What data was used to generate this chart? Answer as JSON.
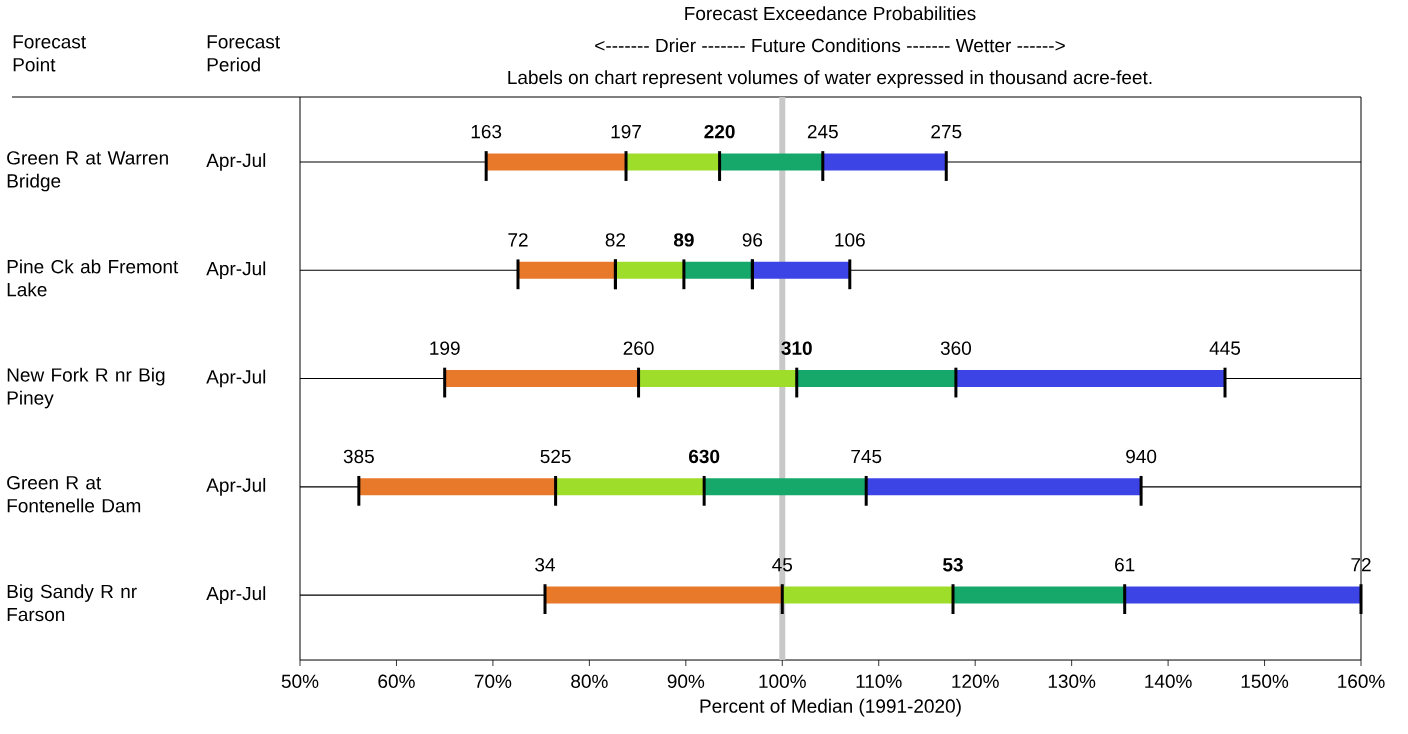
{
  "chart_data": {
    "type": "bar",
    "orientation": "horizontal",
    "title": "Forecast Exceedance Probabilities",
    "xlabel": "Percent of Median (1991-2020)",
    "categories": [
      "Green R at Warren Bridge",
      "Pine Ck ab Fremont Lake",
      "New Fork R nr Big Piney",
      "Green R at Fontenelle Dam",
      "Big Sandy R nr Farson"
    ],
    "y2_categories": [
      "Apr-Jul",
      "Apr-Jul",
      "Apr-Jul",
      "Apr-Jul",
      "Apr-Jul"
    ],
    "series": [
      {
        "color": "#e8782a",
        "base": [
          69.3,
          72.6,
          65,
          56.1,
          75.4
        ],
        "values": [
          14.5,
          10.1,
          20.1,
          20.4,
          24.6
        ]
      },
      {
        "color": "#9ede2a",
        "base": [
          83.8,
          82.7,
          85.1,
          76.5,
          100
        ],
        "values": [
          9.7,
          7.1,
          16.4,
          15.4,
          17.7
        ]
      },
      {
        "color": "#16a76a",
        "base": [
          93.5,
          89.8,
          101.5,
          91.9,
          117.7
        ],
        "values": [
          10.7,
          7.1,
          16.5,
          16.8,
          17.8
        ]
      },
      {
        "color": "#3c44e6",
        "base": [
          104.2,
          96.9,
          118,
          108.7,
          135.5
        ],
        "values": [
          12.8,
          10.1,
          27.9,
          28.5,
          24.5
        ]
      }
    ],
    "xlim": [
      50,
      160
    ],
    "xticks": [
      {
        "value": 50,
        "label": "50%"
      },
      {
        "value": 60,
        "label": "60%"
      },
      {
        "value": 70,
        "label": "70%"
      },
      {
        "value": 80,
        "label": "80%"
      },
      {
        "value": 90,
        "label": "90%"
      },
      {
        "value": 100,
        "label": "100%"
      },
      {
        "value": 110,
        "label": "110%"
      },
      {
        "value": 120,
        "label": "120%"
      },
      {
        "value": 130,
        "label": "130%"
      },
      {
        "value": 140,
        "label": "140%"
      },
      {
        "value": 150,
        "label": "150%"
      },
      {
        "value": 160,
        "label": "160%"
      }
    ],
    "grid": "y",
    "ref_lines": [
      {
        "axis": "x",
        "value": 100,
        "color": "#c8c8c8"
      }
    ],
    "annotations": [
      "Forecast Point",
      "Forecast Period",
      "<------- Drier ------- Future Conditions ------- Wetter ------>",
      "Labels on chart represent volumes of water expressed in thousand acre-feet.",
      {
        "text": "163",
        "x": 69.3,
        "y": "Green R at Warren Bridge"
      },
      {
        "text": "197",
        "x": 83.8,
        "y": "Green R at Warren Bridge"
      },
      {
        "text": "220",
        "x": 93.5,
        "y": "Green R at Warren Bridge"
      },
      {
        "text": "245",
        "x": 104.2,
        "y": "Green R at Warren Bridge"
      },
      {
        "text": "275",
        "x": 117,
        "y": "Green R at Warren Bridge"
      },
      {
        "text": "72",
        "x": 72.6,
        "y": "Pine Ck ab Fremont Lake"
      },
      {
        "text": "82",
        "x": 82.7,
        "y": "Pine Ck ab Fremont Lake"
      },
      {
        "text": "89",
        "x": 89.8,
        "y": "Pine Ck ab Fremont Lake"
      },
      {
        "text": "96",
        "x": 96.9,
        "y": "Pine Ck ab Fremont Lake"
      },
      {
        "text": "106",
        "x": 107,
        "y": "Pine Ck ab Fremont Lake"
      },
      {
        "text": "199",
        "x": 65,
        "y": "New Fork R nr Big Piney"
      },
      {
        "text": "260",
        "x": 85.1,
        "y": "New Fork R nr Big Piney"
      },
      {
        "text": "310",
        "x": 101.5,
        "y": "New Fork R nr Big Piney"
      },
      {
        "text": "360",
        "x": 118,
        "y": "New Fork R nr Big Piney"
      },
      {
        "text": "445",
        "x": 145.9,
        "y": "New Fork R nr Big Piney"
      },
      {
        "text": "385",
        "x": 56.1,
        "y": "Green R at Fontenelle Dam"
      },
      {
        "text": "525",
        "x": 76.5,
        "y": "Green R at Fontenelle Dam"
      },
      {
        "text": "630",
        "x": 91.9,
        "y": "Green R at Fontenelle Dam"
      },
      {
        "text": "745",
        "x": 108.7,
        "y": "Green R at Fontenelle Dam"
      },
      {
        "text": "940",
        "x": 137.2,
        "y": "Green R at Fontenelle Dam"
      },
      {
        "text": "34",
        "x": 75.4,
        "y": "Big Sandy R nr Farson"
      },
      {
        "text": "45",
        "x": 100,
        "y": "Big Sandy R nr Farson"
      },
      {
        "text": "53",
        "x": 117.7,
        "y": "Big Sandy R nr Farson"
      },
      {
        "text": "61",
        "x": 135.5,
        "y": "Big Sandy R nr Farson"
      },
      {
        "text": "72",
        "x": 160,
        "y": "Big Sandy R nr Farson"
      }
    ]
  }
}
